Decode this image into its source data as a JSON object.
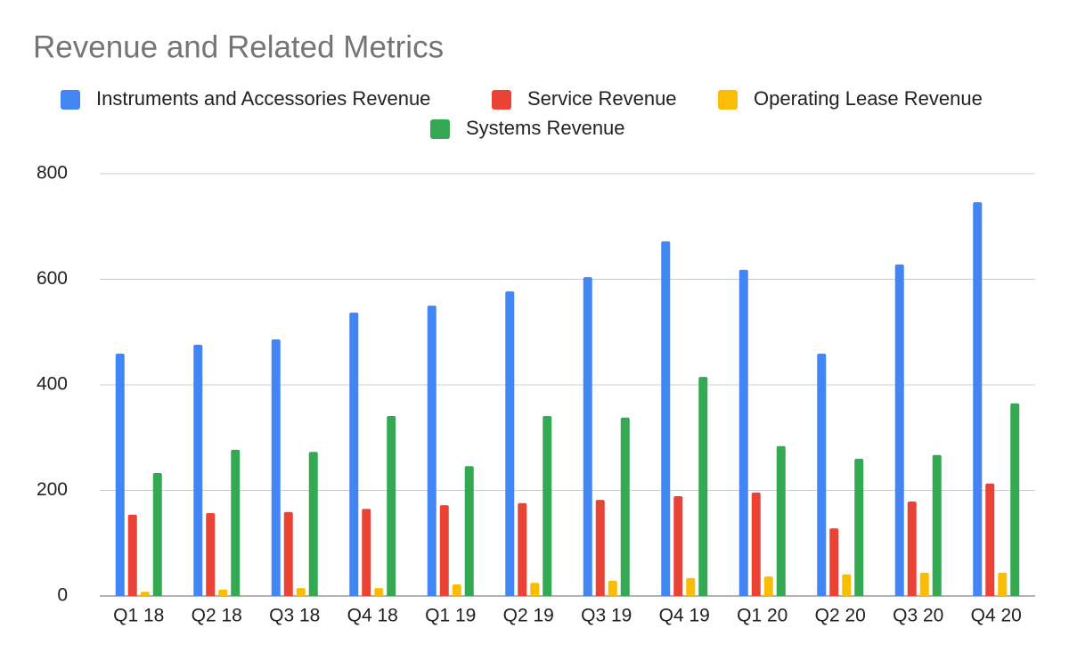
{
  "chart_data": {
    "type": "bar",
    "title": "Revenue and Related Metrics",
    "categories": [
      "Q1 18",
      "Q2 18",
      "Q3 18",
      "Q4 18",
      "Q1 19",
      "Q2 19",
      "Q3 19",
      "Q4 19",
      "Q1 20",
      "Q2 20",
      "Q3 20",
      "Q4 20"
    ],
    "series": [
      {
        "name": "Instruments and Accessories Revenue",
        "color": "#4285f4",
        "values": [
          459,
          476,
          486,
          537,
          550,
          577,
          604,
          672,
          618,
          459,
          628,
          746
        ]
      },
      {
        "name": "Service Revenue",
        "color": "#ea4335",
        "values": [
          154,
          157,
          159,
          165,
          172,
          176,
          182,
          189,
          196,
          128,
          179,
          213
        ]
      },
      {
        "name": "Operating Lease Revenue",
        "color": "#fbbc04",
        "values": [
          8,
          12,
          15,
          15,
          22,
          25,
          29,
          34,
          37,
          41,
          44,
          44
        ]
      },
      {
        "name": "Systems Revenue",
        "color": "#34a853",
        "values": [
          233,
          277,
          273,
          341,
          246,
          341,
          338,
          415,
          284,
          260,
          267,
          365
        ]
      }
    ],
    "ylim": [
      0,
      800
    ],
    "yticks": [
      0,
      200,
      400,
      600,
      800
    ],
    "grid": true,
    "legend": "top"
  }
}
